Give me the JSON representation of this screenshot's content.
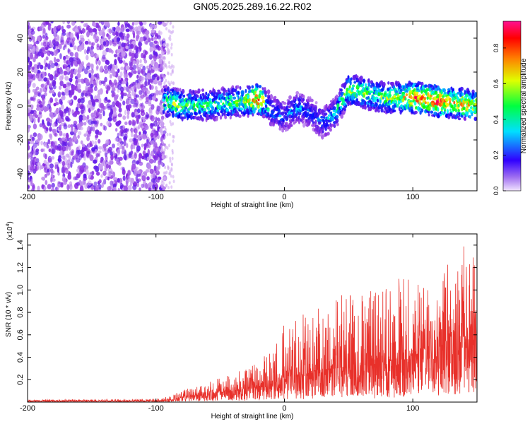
{
  "figure": {
    "title": "GN05.2025.289.16.22.R02"
  },
  "chart_data": [
    {
      "type": "heatmap",
      "xlabel": "Height of straight line (km)",
      "ylabel": "Frequency (Hz)",
      "xlim": [
        -200,
        150
      ],
      "ylim": [
        -50,
        50
      ],
      "xticks": [
        -200,
        -100,
        0,
        100
      ],
      "yticks": [
        -40,
        -20,
        0,
        20,
        40
      ],
      "colorbar": {
        "label": "Normalized spectral amplitude",
        "range": [
          0,
          0.95
        ],
        "ticks": [
          0.0,
          0.2,
          0.4,
          0.6,
          0.8
        ],
        "tick_labels": [
          "0.0",
          "0.2",
          "0.4",
          "0.6",
          "0.8"
        ],
        "colors": [
          "#e8d8f8",
          "#8a2be2",
          "#0000ff",
          "#00ffff",
          "#00ff00",
          "#ffff00",
          "#ff8000",
          "#ff0000",
          "#ff0080"
        ]
      },
      "noise_region_x": [
        -200,
        -93
      ],
      "ridge": {
        "x": [
          -95,
          -85,
          -70,
          -55,
          -40,
          -30,
          -20,
          -15,
          -10,
          0,
          10,
          20,
          30,
          40,
          50,
          60,
          70,
          80,
          90,
          100,
          110,
          120,
          130,
          140,
          150
        ],
        "y_center": [
          3,
          1,
          0,
          1,
          2,
          3,
          4,
          2,
          -3,
          -6,
          -1,
          -4,
          -10,
          -4,
          10,
          8,
          6,
          5,
          5,
          5,
          4,
          3,
          2,
          1,
          0
        ],
        "amplitude": [
          0.5,
          0.55,
          0.5,
          0.45,
          0.5,
          0.55,
          0.85,
          0.5,
          0.35,
          0.3,
          0.35,
          0.3,
          0.3,
          0.4,
          0.6,
          0.55,
          0.5,
          0.55,
          0.6,
          0.85,
          0.8,
          0.9,
          0.7,
          0.75,
          0.6
        ]
      },
      "grid": false
    },
    {
      "type": "line",
      "xlabel": "Height of straight line (km)",
      "ylabel": "SNR (10 * v/v)",
      "scale_label_prefix": "(x10",
      "scale_label_exponent": "4",
      "scale_label_suffix": ")",
      "xlim": [
        -200,
        150
      ],
      "ylim": [
        0,
        1.5
      ],
      "xticks": [
        -200,
        -100,
        0,
        100
      ],
      "yticks": [
        0.2,
        0.4,
        0.6,
        0.8,
        1.0,
        1.2,
        1.4
      ],
      "ytick_labels": [
        "0.2",
        "0.4",
        "0.6",
        "0.8",
        "1.0",
        "1.2",
        "1.4"
      ],
      "series": [
        {
          "color": "#e8302a",
          "envelope": {
            "x": [
              -200,
              -100,
              -90,
              -80,
              -70,
              -50,
              -30,
              -10,
              0,
              20,
              40,
              60,
              80,
              100,
              110,
              120,
              130,
              140,
              145,
              150
            ],
            "y_base": [
              0.01,
              0.01,
              0.02,
              0.04,
              0.06,
              0.09,
              0.12,
              0.16,
              0.22,
              0.26,
              0.3,
              0.32,
              0.36,
              0.4,
              0.48,
              0.55,
              0.6,
              0.58,
              0.62,
              0.58
            ],
            "y_peak": [
              0.02,
              0.03,
              0.05,
              0.1,
              0.15,
              0.22,
              0.3,
              0.45,
              0.7,
              0.85,
              0.95,
              1.0,
              1.05,
              1.2,
              1.0,
              1.1,
              1.3,
              1.45,
              1.38,
              1.2
            ]
          }
        }
      ],
      "grid": false
    }
  ]
}
